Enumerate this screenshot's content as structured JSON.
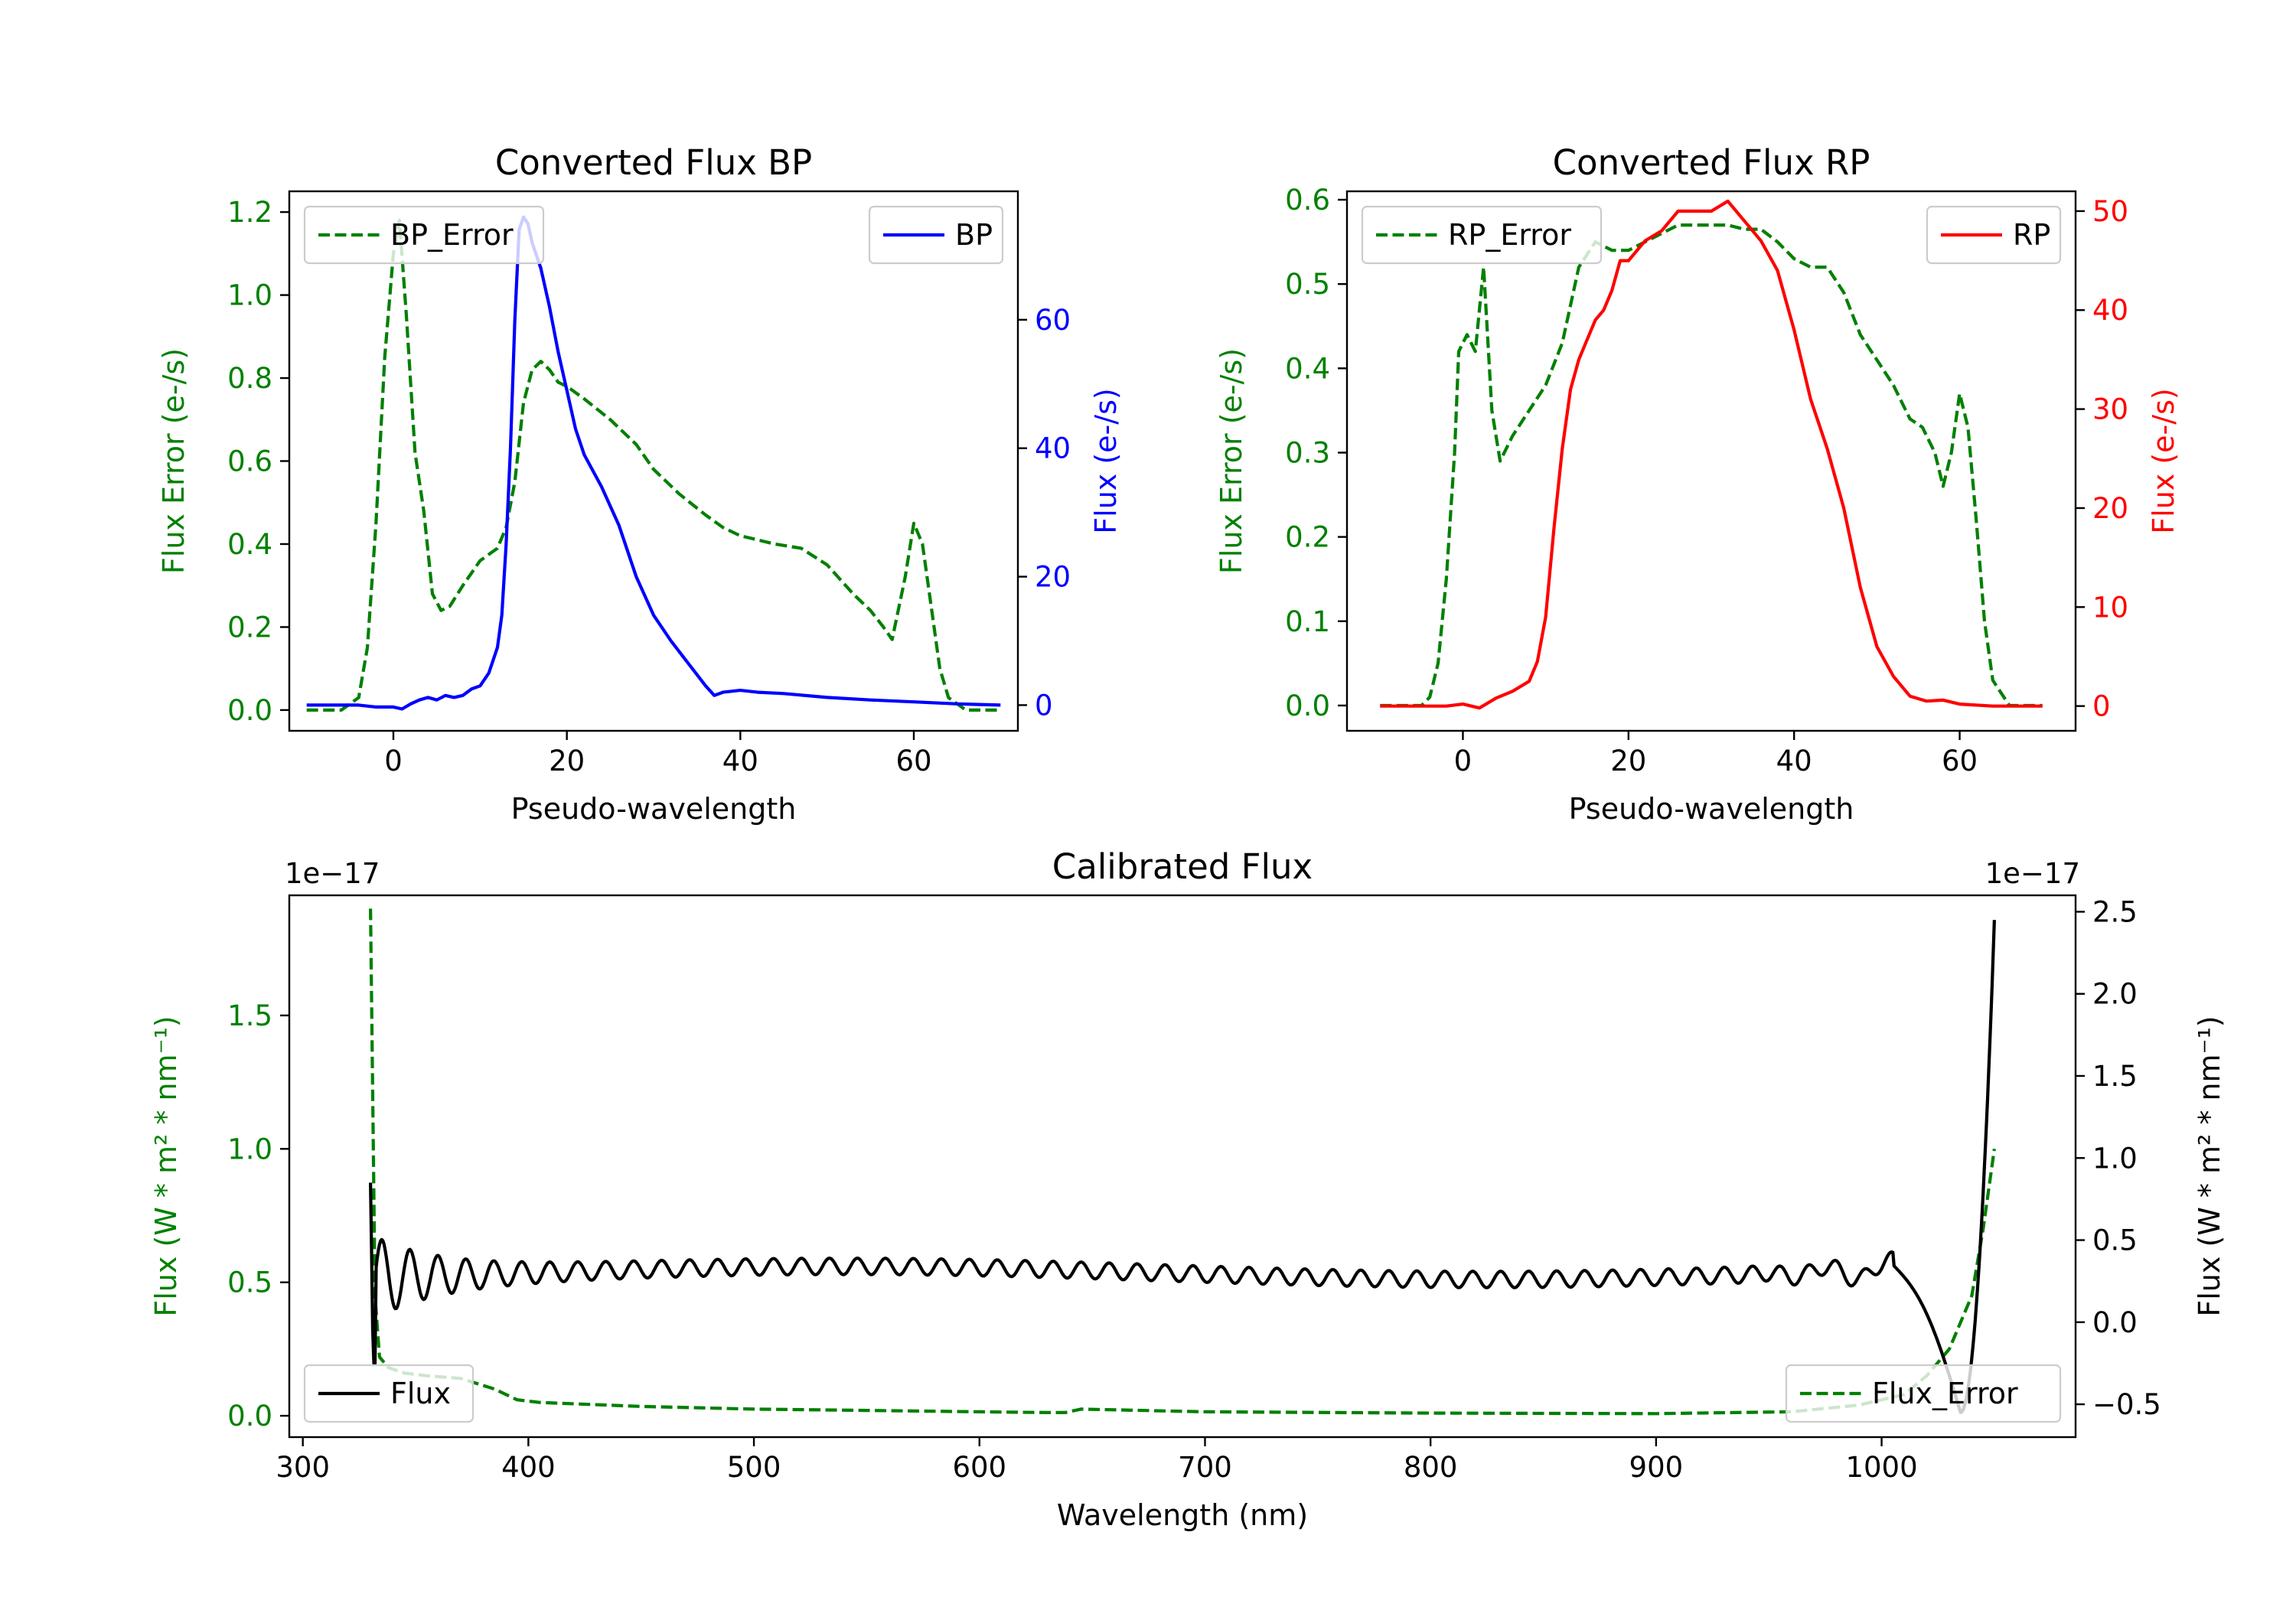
{
  "chart_data": [
    {
      "id": "bp",
      "type": "line",
      "title": "Converted Flux BP",
      "xlabel": "Pseudo-wavelength",
      "ylabel_left": "Flux Error (e-/s)",
      "ylabel_right": "Flux (e-/s)",
      "xlim": [
        -12,
        72
      ],
      "ylim_left": [
        -0.05,
        1.25
      ],
      "ylim_right": [
        -4,
        80
      ],
      "xticks": [
        "0",
        "20",
        "40",
        "60"
      ],
      "xtick_values": [
        0,
        20,
        40,
        60
      ],
      "yticks_left": [
        "0.0",
        "0.2",
        "0.4",
        "0.6",
        "0.8",
        "1.0",
        "1.2"
      ],
      "ytick_values_left": [
        0.0,
        0.2,
        0.4,
        0.6,
        0.8,
        1.0,
        1.2
      ],
      "yticks_right": [
        "0",
        "20",
        "40",
        "60"
      ],
      "ytick_values_right": [
        0,
        20,
        40,
        60
      ],
      "left_color": "#008000",
      "right_color": "#0000ff",
      "series": [
        {
          "name": "BP_Error",
          "axis": "left",
          "color": "#008000",
          "style": "dashed",
          "x": [
            -10,
            -6,
            -4,
            -3,
            -2,
            -1,
            0,
            0.7,
            1.5,
            2.5,
            3.5,
            4.5,
            5.5,
            6.5,
            8,
            10,
            12,
            13,
            14,
            15,
            16,
            17,
            18,
            19,
            20,
            22,
            25,
            28,
            30,
            33,
            36,
            38,
            40,
            42,
            44,
            47,
            50,
            53,
            55,
            56.5,
            57.5,
            59,
            60,
            61,
            62,
            63,
            64,
            66,
            70
          ],
          "y": [
            0.0,
            0.0,
            0.03,
            0.15,
            0.45,
            0.85,
            1.1,
            1.18,
            0.95,
            0.62,
            0.48,
            0.28,
            0.24,
            0.25,
            0.3,
            0.36,
            0.39,
            0.44,
            0.55,
            0.74,
            0.82,
            0.84,
            0.82,
            0.79,
            0.78,
            0.75,
            0.7,
            0.64,
            0.58,
            0.52,
            0.47,
            0.44,
            0.42,
            0.41,
            0.4,
            0.39,
            0.35,
            0.28,
            0.24,
            0.2,
            0.17,
            0.32,
            0.45,
            0.4,
            0.25,
            0.1,
            0.03,
            0.0,
            0.0
          ]
        },
        {
          "name": "BP",
          "axis": "right",
          "color": "#0000ff",
          "style": "solid",
          "x": [
            -10,
            -4,
            -2,
            0,
            1,
            2,
            3,
            4,
            5,
            6,
            7,
            8,
            9,
            10,
            11,
            12,
            12.5,
            13,
            13.5,
            14,
            14.5,
            15,
            15.5,
            16,
            17,
            18,
            19,
            20,
            21,
            22,
            24,
            26,
            28,
            30,
            32,
            34,
            36,
            37,
            38,
            40,
            42,
            45,
            50,
            55,
            60,
            65,
            70
          ],
          "y": [
            0,
            0,
            -0.3,
            -0.3,
            -0.6,
            0.2,
            0.8,
            1.2,
            0.8,
            1.5,
            1.2,
            1.5,
            2.5,
            3.0,
            5.0,
            9.0,
            14,
            25,
            40,
            60,
            74,
            76,
            75,
            72,
            68,
            62,
            55,
            49,
            43,
            39,
            34,
            28,
            20,
            14,
            10,
            6.5,
            3.0,
            1.5,
            2.0,
            2.3,
            2.0,
            1.8,
            1.2,
            0.8,
            0.5,
            0.2,
            0
          ]
        }
      ]
    },
    {
      "id": "rp",
      "type": "line",
      "title": "Converted Flux RP",
      "xlabel": "Pseudo-wavelength",
      "ylabel_left": "Flux Error (e-/s)",
      "ylabel_right": "Flux (e-/s)",
      "xlim": [
        -14,
        74
      ],
      "ylim_left": [
        -0.03,
        0.61
      ],
      "ylim_right": [
        -2.5,
        52
      ],
      "xticks": [
        "0",
        "20",
        "40",
        "60"
      ],
      "xtick_values": [
        0,
        20,
        40,
        60
      ],
      "yticks_left": [
        "0.0",
        "0.1",
        "0.2",
        "0.3",
        "0.4",
        "0.5",
        "0.6"
      ],
      "ytick_values_left": [
        0.0,
        0.1,
        0.2,
        0.3,
        0.4,
        0.5,
        0.6
      ],
      "yticks_right": [
        "0",
        "10",
        "20",
        "30",
        "40",
        "50"
      ],
      "ytick_values_right": [
        0,
        10,
        20,
        30,
        40,
        50
      ],
      "left_color": "#008000",
      "right_color": "#ff0000",
      "series": [
        {
          "name": "RP_Error",
          "axis": "left",
          "color": "#008000",
          "style": "dashed",
          "x": [
            -10,
            -5,
            -4,
            -3,
            -2,
            -1,
            -0.5,
            0.5,
            1.5,
            2.5,
            3.5,
            4.5,
            6,
            8,
            10,
            12,
            14,
            16,
            18,
            20,
            22,
            24,
            26,
            28,
            30,
            32,
            34,
            36,
            38,
            40,
            42,
            44,
            46,
            48,
            50,
            52,
            54,
            55.5,
            57,
            58,
            59,
            60,
            61,
            62,
            63,
            64,
            66,
            70
          ],
          "y": [
            0.0,
            0.0,
            0.01,
            0.05,
            0.15,
            0.3,
            0.42,
            0.44,
            0.42,
            0.52,
            0.35,
            0.29,
            0.32,
            0.35,
            0.38,
            0.43,
            0.52,
            0.55,
            0.54,
            0.54,
            0.55,
            0.56,
            0.57,
            0.57,
            0.57,
            0.57,
            0.565,
            0.565,
            0.55,
            0.53,
            0.52,
            0.52,
            0.49,
            0.44,
            0.41,
            0.38,
            0.34,
            0.33,
            0.3,
            0.26,
            0.3,
            0.37,
            0.33,
            0.22,
            0.1,
            0.03,
            0.0,
            0.0
          ]
        },
        {
          "name": "RP",
          "axis": "right",
          "color": "#ff0000",
          "style": "solid",
          "x": [
            -10,
            -4,
            -2,
            0,
            2,
            4,
            6,
            8,
            9,
            10,
            11,
            12,
            13,
            14,
            15,
            16,
            17,
            18,
            19,
            20,
            22,
            24,
            26,
            28,
            30,
            32,
            34,
            36,
            38,
            40,
            42,
            44,
            46,
            48,
            50,
            52,
            54,
            56,
            58,
            60,
            64,
            70
          ],
          "y": [
            0,
            0,
            0,
            0.2,
            -0.2,
            0.8,
            1.5,
            2.5,
            4.5,
            9,
            18,
            26,
            32,
            35,
            37,
            39,
            40,
            42,
            45,
            45,
            47,
            48,
            50,
            50,
            50,
            51,
            49,
            47,
            44,
            38,
            31,
            26,
            20,
            12,
            6,
            3,
            1,
            0.5,
            0.6,
            0.2,
            0,
            0
          ]
        }
      ]
    },
    {
      "id": "calibrated",
      "type": "line",
      "title": "Calibrated Flux",
      "xlabel": "Wavelength (nm)",
      "ylabel_left": "Flux (W * m² * nm⁻¹)",
      "ylabel_right": "Flux (W * m² * nm⁻¹)",
      "offset_left": "1e−17",
      "offset_right": "1e−17",
      "xlim": [
        294,
        1086
      ],
      "ylim_left": [
        -0.08,
        1.95
      ],
      "ylim_right": [
        -0.7,
        2.6
      ],
      "xticks": [
        "300",
        "400",
        "500",
        "600",
        "700",
        "800",
        "900",
        "1000"
      ],
      "xtick_values": [
        300,
        400,
        500,
        600,
        700,
        800,
        900,
        1000
      ],
      "yticks_left": [
        "0.0",
        "0.5",
        "1.0",
        "1.5"
      ],
      "ytick_values_left": [
        0.0,
        0.5,
        1.0,
        1.5
      ],
      "yticks_right": [
        "−0.5",
        "0.0",
        "0.5",
        "1.0",
        "1.5",
        "2.0",
        "2.5"
      ],
      "ytick_values_right": [
        -0.5,
        0.0,
        0.5,
        1.0,
        1.5,
        2.0,
        2.5
      ],
      "left_color": "#008000",
      "right_color": "#000000",
      "series": [
        {
          "name": "Flux_Error",
          "axis": "left",
          "color": "#008000",
          "style": "dashed",
          "x": [
            330,
            331,
            332,
            334,
            338,
            345,
            355,
            370,
            385,
            395,
            405,
            450,
            500,
            550,
            600,
            630,
            638,
            645,
            700,
            800,
            900,
            960,
            990,
            1010,
            1020,
            1030,
            1040,
            1045,
            1050
          ],
          "y": [
            1.9,
            1.2,
            0.45,
            0.22,
            0.18,
            0.16,
            0.15,
            0.14,
            0.1,
            0.06,
            0.05,
            0.035,
            0.025,
            0.02,
            0.015,
            0.012,
            0.012,
            0.025,
            0.015,
            0.01,
            0.008,
            0.015,
            0.04,
            0.08,
            0.15,
            0.25,
            0.45,
            0.7,
            1.0
          ]
        },
        {
          "name": "Flux",
          "axis": "right",
          "color": "#000000",
          "style": "solid",
          "sample_step_nm": 2,
          "x_start": 330,
          "x_end": 1050
        }
      ]
    }
  ]
}
